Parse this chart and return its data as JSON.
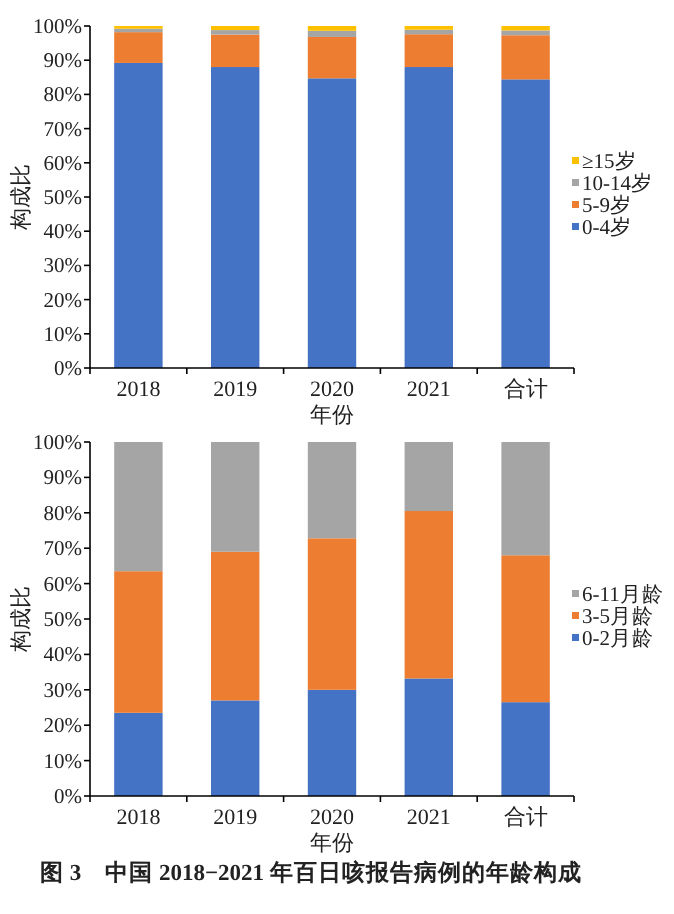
{
  "chart_data": [
    {
      "type": "bar",
      "stacked": true,
      "categories": [
        "2018",
        "2019",
        "2020",
        "2021",
        "合计"
      ],
      "xlabel": "年份",
      "ylabel": "构成比",
      "ylim": [
        0,
        100
      ],
      "yticks": [
        {
          "value": 0,
          "label": "0%"
        },
        {
          "value": 10,
          "label": "10%"
        },
        {
          "value": 20,
          "label": "20%"
        },
        {
          "value": 30,
          "label": "30%"
        },
        {
          "value": 40,
          "label": "40%"
        },
        {
          "value": 50,
          "label": "50%"
        },
        {
          "value": 60,
          "label": "60%"
        },
        {
          "value": 70,
          "label": "70%"
        },
        {
          "value": 80,
          "label": "80%"
        },
        {
          "value": 90,
          "label": "90%"
        },
        {
          "value": 100,
          "label": "100%"
        }
      ],
      "legend": "right",
      "series": [
        {
          "name": "0-4岁",
          "color": "#4472c4",
          "values": [
            89.2,
            88.0,
            84.7,
            88.0,
            84.4
          ]
        },
        {
          "name": "5-9岁",
          "color": "#ed7d31",
          "values": [
            9.0,
            9.5,
            12.1,
            9.6,
            12.9
          ]
        },
        {
          "name": "10-14岁",
          "color": "#a5a5a5",
          "values": [
            1.0,
            1.3,
            1.8,
            1.3,
            1.4
          ]
        },
        {
          "name": "≥15岁",
          "color": "#ffc000",
          "values": [
            0.8,
            1.2,
            1.4,
            1.1,
            1.3
          ]
        }
      ]
    },
    {
      "type": "bar",
      "stacked": true,
      "categories": [
        "2018",
        "2019",
        "2020",
        "2021",
        "合计"
      ],
      "xlabel": "年份",
      "ylabel": "构成比",
      "ylim": [
        0,
        100
      ],
      "yticks": [
        {
          "value": 0,
          "label": "0%"
        },
        {
          "value": 10,
          "label": "10%"
        },
        {
          "value": 20,
          "label": "20%"
        },
        {
          "value": 30,
          "label": "30%"
        },
        {
          "value": 40,
          "label": "40%"
        },
        {
          "value": 50,
          "label": "50%"
        },
        {
          "value": 60,
          "label": "60%"
        },
        {
          "value": 70,
          "label": "70%"
        },
        {
          "value": 80,
          "label": "80%"
        },
        {
          "value": 90,
          "label": "90%"
        },
        {
          "value": 100,
          "label": "100%"
        }
      ],
      "legend": "right",
      "series": [
        {
          "name": "0-2月龄",
          "color": "#4472c4",
          "values": [
            23.5,
            27.0,
            30.0,
            33.2,
            26.5
          ]
        },
        {
          "name": "3-5月龄",
          "color": "#ed7d31",
          "values": [
            40.0,
            42.0,
            42.8,
            47.3,
            41.5
          ]
        },
        {
          "name": "6-11月龄",
          "color": "#a5a5a5",
          "values": [
            36.5,
            31.0,
            27.2,
            19.5,
            32.0
          ]
        }
      ],
      "annotations": [
        "图 3　中国 2018−2021 年百日咳报告病例的年龄构成"
      ]
    }
  ]
}
